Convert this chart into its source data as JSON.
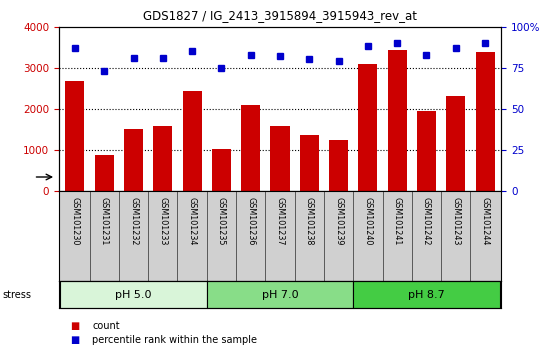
{
  "title": "GDS1827 / IG_2413_3915894_3915943_rev_at",
  "samples": [
    "GSM101230",
    "GSM101231",
    "GSM101232",
    "GSM101233",
    "GSM101234",
    "GSM101235",
    "GSM101236",
    "GSM101237",
    "GSM101238",
    "GSM101239",
    "GSM101240",
    "GSM101241",
    "GSM101242",
    "GSM101243",
    "GSM101244"
  ],
  "counts": [
    2680,
    870,
    1520,
    1580,
    2430,
    1030,
    2100,
    1590,
    1360,
    1240,
    3080,
    3430,
    1960,
    2310,
    3390
  ],
  "percentiles": [
    87,
    73,
    81,
    81,
    85,
    75,
    83,
    82,
    80,
    79,
    88,
    90,
    83,
    87,
    90
  ],
  "groups": [
    {
      "label": "pH 5.0",
      "start": 0,
      "end": 4,
      "color": "#d9f5d9"
    },
    {
      "label": "pH 7.0",
      "start": 5,
      "end": 9,
      "color": "#88dd88"
    },
    {
      "label": "pH 8.7",
      "start": 10,
      "end": 14,
      "color": "#44cc44"
    }
  ],
  "bar_color": "#cc0000",
  "dot_color": "#0000cc",
  "ylim_left": [
    0,
    4000
  ],
  "ylim_right": [
    0,
    100
  ],
  "yticks_left": [
    0,
    1000,
    2000,
    3000,
    4000
  ],
  "yticks_right": [
    0,
    25,
    50,
    75,
    100
  ],
  "left_tick_color": "#cc0000",
  "right_tick_color": "#0000cc",
  "grid_lines": [
    1000,
    2000,
    3000
  ],
  "stress_label": "stress",
  "legend_count": "count",
  "legend_percentile": "percentile rank within the sample",
  "bg_gray": "#d0d0d0",
  "plot_bg": "#ffffff"
}
